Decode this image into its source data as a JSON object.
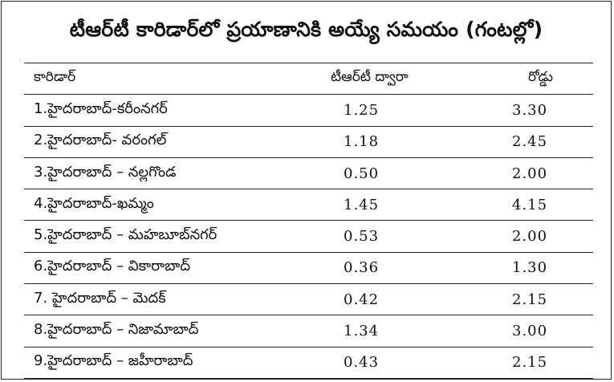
{
  "title": "టీఆర్‌టీ కారిడార్‌లో ప్రయాణానికి అయ్యే సమయం (గంటల్లో)",
  "columns": {
    "corridor": "కారిడార్",
    "trt": "టీఆర్‌టీ ద్వారా",
    "road": "రోడ్డు"
  },
  "rows": [
    {
      "corridor": "1.హైదరాబాద్‌-కరీంనగర్‌",
      "trt": "1.25",
      "road": "3.30"
    },
    {
      "corridor": "2.హైదరాబాద్‌- వరంగల్‌",
      "trt": "1.18",
      "road": "2.45"
    },
    {
      "corridor": "3.హైదరాబాద్‌ – నల్లగొండ",
      "trt": "0.50",
      "road": "2.00"
    },
    {
      "corridor": "4.హైదరాబాద్‌-ఖమ్మం",
      "trt": "1.45",
      "road": "4.15"
    },
    {
      "corridor": "5.హైదరాబాద్‌ – మహబూబ్‌నగర్‌",
      "trt": "0.53",
      "road": "2.00"
    },
    {
      "corridor": "6.హైదరాబాద్‌  – వికారాబాద్‌",
      "trt": "0.36",
      "road": "1.30"
    },
    {
      "corridor": "7. హైదరాబాద్‌ –  మెదక్‌",
      "trt": "0.42",
      "road": "2.15"
    },
    {
      "corridor": "8.హైదరాబాద్‌ – నిజామాబాద్‌",
      "trt": "1.34",
      "road": "3.00"
    },
    {
      "corridor": "9.హైదరాబాద్‌ – జహీరాబాద్‌",
      "trt": "0.43",
      "road": "2.15"
    }
  ]
}
